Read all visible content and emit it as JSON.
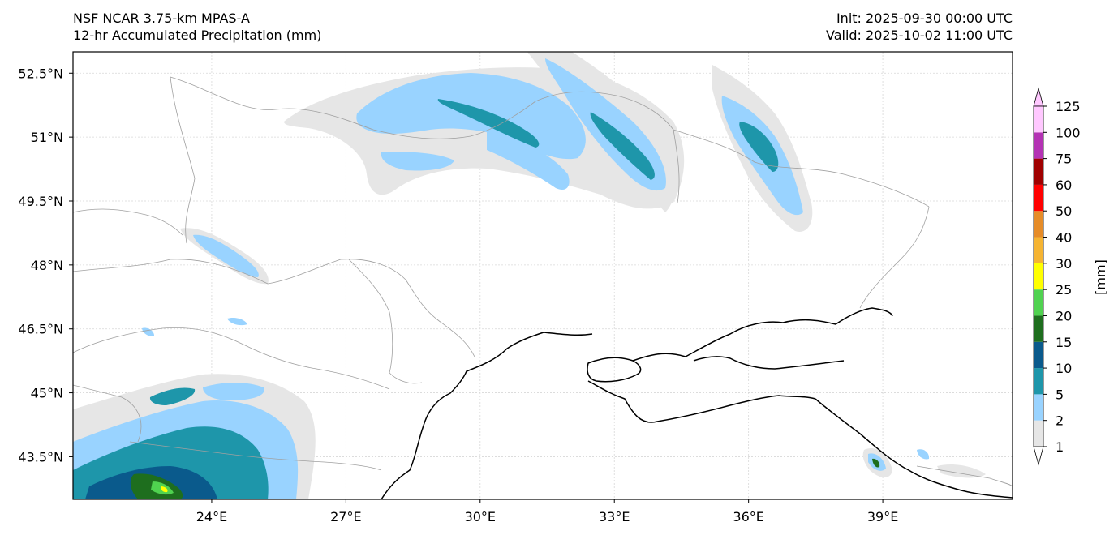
{
  "header": {
    "model": "NSF NCAR 3.75-km MPAS-A",
    "product": "12-hr Accumulated Precipitation (mm)",
    "init": "Init: 2025-09-30 00:00 UTC",
    "valid": "Valid: 2025-10-02 11:00 UTC"
  },
  "map": {
    "lon_range": [
      20.9,
      41.9
    ],
    "lat_range": [
      42.5,
      53.0
    ],
    "lon_ticks": [
      "24°E",
      "27°E",
      "30°E",
      "33°E",
      "36°E",
      "39°E"
    ],
    "lon_tick_values": [
      24,
      27,
      30,
      33,
      36,
      39
    ],
    "lat_ticks": [
      "52.5°N",
      "51°N",
      "49.5°N",
      "48°N",
      "46.5°N",
      "45°N",
      "43.5°N"
    ],
    "lat_tick_values": [
      52.5,
      51,
      49.5,
      48,
      46.5,
      45,
      43.5
    ],
    "gridlines": true
  },
  "colorbar": {
    "unit_label": "[mm]",
    "levels": [
      "1",
      "2",
      "5",
      "10",
      "15",
      "20",
      "25",
      "30",
      "40",
      "50",
      "60",
      "75",
      "100",
      "125"
    ],
    "colors": [
      "#e6e6e6",
      "#99d3ff",
      "#1e96aa",
      "#0a5a8c",
      "#1e6e1e",
      "#50d250",
      "#ffff00",
      "#f5b432",
      "#e68c28",
      "#ff0000",
      "#a00000",
      "#b432b4",
      "#ffc8ff"
    ]
  },
  "precip_colors": {
    "light": "#e6e6e6",
    "blue": "#99d3ff",
    "teal": "#1e96aa",
    "dark": "#0a5a8c",
    "green": "#1e6e1e",
    "lightgreen": "#50d250",
    "yellow": "#ffff00"
  }
}
